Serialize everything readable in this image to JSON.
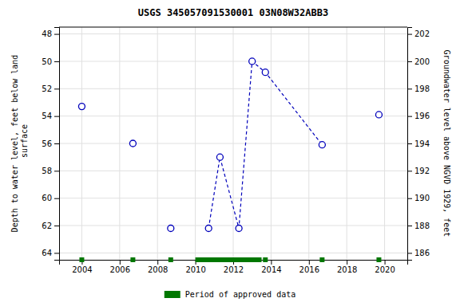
{
  "chart_data": {
    "type": "line",
    "title": "USGS 345057091530001 03N08W32ABB3",
    "ylabel": "Depth to water level, feet below land\n surface",
    "y2label": "Groundwater level above NGVD 1929, feet",
    "series": [
      {
        "x": [
          2004.0,
          2006.7,
          2008.7,
          2019.7
        ],
        "values": [
          53.3,
          56.0,
          62.2,
          53.9
        ],
        "color": "#0000BB",
        "marker": "circle",
        "line_style": "none"
      },
      {
        "x": [
          2010.7,
          2011.3,
          2012.3,
          2013.0,
          2013.7,
          2016.7
        ],
        "values": [
          62.2,
          57.0,
          62.2,
          50.0,
          50.8,
          56.1
        ],
        "color": "#0000BB",
        "marker": "circle",
        "line_style": "dashed"
      },
      {
        "name": "Period of approved data",
        "type": "period",
        "x": [
          2010.0,
          2013.5
        ],
        "values": [
          64.5,
          64.5
        ],
        "color": "#007700",
        "marker": "none",
        "line_style": "solid"
      },
      {
        "x": [
          2004.0,
          2006.7,
          2008.7,
          2013.7,
          2016.7,
          2019.7
        ],
        "values": [
          64.5,
          64.5,
          64.5,
          64.5,
          64.5,
          64.5
        ],
        "color": "#007700",
        "marker": "square",
        "line_style": "none"
      }
    ],
    "xlim": [
      2002.8,
      2021.2
    ],
    "xticks": [
      2004,
      2006,
      2008,
      2010,
      2012,
      2014,
      2016,
      2018,
      2020
    ],
    "ylim": [
      64.5,
      47.5
    ],
    "yticks": [
      48,
      50,
      52,
      54,
      56,
      58,
      60,
      62,
      64
    ],
    "y2lim": [
      185.5,
      202.5
    ],
    "y2ticks": [
      202,
      200,
      198,
      196,
      194,
      192,
      190,
      188,
      186
    ],
    "grid": true
  }
}
